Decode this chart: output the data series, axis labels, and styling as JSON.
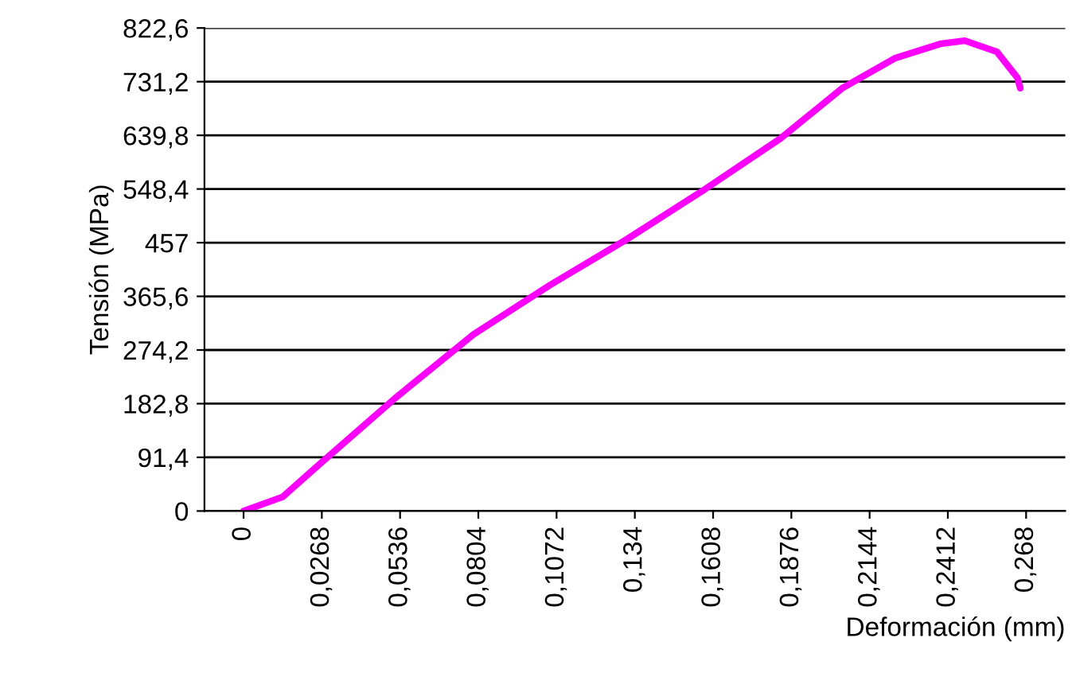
{
  "chart_data": {
    "type": "line",
    "xlabel": "Deformación (mm)",
    "ylabel": "Tensión (MPa)",
    "xlim": [
      -0.0134,
      0.2814
    ],
    "xticks": [
      {
        "value": 0,
        "label": "0"
      },
      {
        "value": 0.0268,
        "label": "0,0268"
      },
      {
        "value": 0.0536,
        "label": "0,0536"
      },
      {
        "value": 0.0804,
        "label": "0,0804"
      },
      {
        "value": 0.1072,
        "label": "0,1072"
      },
      {
        "value": 0.134,
        "label": "0,134"
      },
      {
        "value": 0.1608,
        "label": "0,1608"
      },
      {
        "value": 0.1876,
        "label": "0,1876"
      },
      {
        "value": 0.2144,
        "label": "0,2144"
      },
      {
        "value": 0.2412,
        "label": "0,2412"
      },
      {
        "value": 0.268,
        "label": "0,268"
      }
    ],
    "ylim": [
      0,
      822.6
    ],
    "yticks": [
      0,
      {
        "value": 91.4,
        "label": "91,4"
      },
      {
        "value": 182.8,
        "label": "182,8"
      },
      {
        "value": 274.2,
        "label": "274,2"
      },
      {
        "value": 365.6,
        "label": "365,6"
      },
      457,
      {
        "value": 548.4,
        "label": "548,4"
      },
      {
        "value": 639.8,
        "label": "639,8"
      },
      {
        "value": 731.2,
        "label": "731,2"
      },
      {
        "value": 822.6,
        "label": "822,6"
      }
    ],
    "grid": "y",
    "marker": "none",
    "line_style": "solid",
    "series": [
      {
        "color": "#ff00ff",
        "x": [
          0,
          0.0134,
          0.0263,
          0.0526,
          0.0788,
          0.105,
          0.131,
          0.158,
          0.184,
          0.205,
          0.223,
          0.239,
          0.247,
          0.258,
          0.265,
          0.266
        ],
        "values": [
          0,
          24,
          81,
          195,
          301,
          385,
          462,
          548,
          635,
          720,
          771,
          796,
          801,
          782,
          738,
          720
        ]
      }
    ]
  }
}
